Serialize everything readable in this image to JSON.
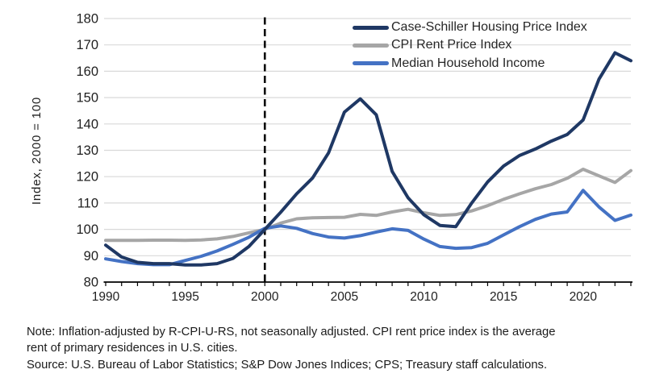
{
  "chart_data": {
    "type": "line",
    "title": "",
    "xlabel": "",
    "ylabel": "Index, 2000 = 100",
    "xlim": [
      1990,
      2023
    ],
    "ylim": [
      80,
      180
    ],
    "grid": "horizontal",
    "legend_position": "top-right",
    "reference_line_x": 2000,
    "y_ticks": [
      80,
      90,
      100,
      110,
      120,
      130,
      140,
      150,
      160,
      170,
      180
    ],
    "x_tick_labels": [
      1990,
      1995,
      2000,
      2005,
      2010,
      2015,
      2020
    ],
    "x": [
      1990,
      1991,
      1992,
      1993,
      1994,
      1995,
      1996,
      1997,
      1998,
      1999,
      2000,
      2001,
      2002,
      2003,
      2004,
      2005,
      2006,
      2007,
      2008,
      2009,
      2010,
      2011,
      2012,
      2013,
      2014,
      2015,
      2016,
      2017,
      2018,
      2019,
      2020,
      2021,
      2022,
      2023
    ],
    "series": [
      {
        "name": "Case-Schiller Housing Price Index",
        "color": "#1F3864",
        "values": [
          94,
          89.5,
          87.5,
          87,
          87,
          86.5,
          86.5,
          87,
          89,
          93.5,
          100,
          106.5,
          113.5,
          119.5,
          129,
          144.5,
          149.5,
          143.5,
          122,
          112,
          105.5,
          101.5,
          101,
          110,
          118,
          124,
          128,
          130.5,
          133.5,
          136,
          141.5,
          157,
          167,
          164
        ]
      },
      {
        "name": "CPI Rent Price Index",
        "color": "#A6A6A6",
        "values": [
          95.8,
          95.8,
          95.8,
          95.9,
          95.9,
          95.8,
          96,
          96.4,
          97.3,
          98.7,
          100,
          102.4,
          104,
          104.4,
          104.5,
          104.6,
          105.7,
          105.3,
          106.6,
          107.6,
          106.3,
          105.3,
          105.6,
          107,
          109,
          111.4,
          113.5,
          115.4,
          117,
          119.4,
          122.8,
          120.3,
          117.8,
          122.3
        ]
      },
      {
        "name": "Median Household Income",
        "color": "#4472C4",
        "values": [
          88.8,
          87.8,
          87,
          86.6,
          86.6,
          88.2,
          89.8,
          91.8,
          94.3,
          97,
          100.4,
          101.3,
          100.4,
          98.4,
          97.1,
          96.7,
          97.6,
          99,
          100.2,
          99.6,
          96.3,
          93.5,
          92.8,
          93.1,
          94.7,
          97.9,
          101,
          103.8,
          105.8,
          106.6,
          114.8,
          108.5,
          103.4,
          105.4
        ]
      }
    ]
  },
  "notes": {
    "note_line1": "Note: Inflation-adjusted by R-CPI-U-RS, not seasonally adjusted. CPI rent price index is the average",
    "note_line2": "rent of primary residences in U.S. cities.",
    "source": "Source: U.S. Bureau of Labor Statistics; S&P Dow Jones Indices; CPS; Treasury staff calculations."
  },
  "colors": {
    "gridline": "#D9D9D9",
    "axis": "#000000",
    "reference_line": "#0A0A0A",
    "tick_text": "#1F1F1F"
  }
}
